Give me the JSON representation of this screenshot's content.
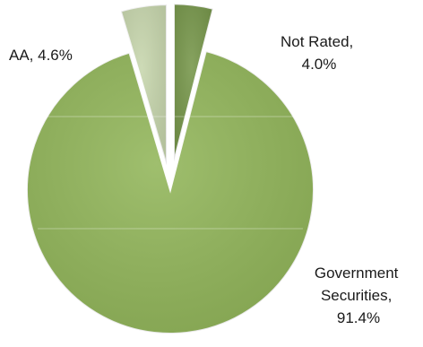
{
  "chart_data": {
    "type": "pie",
    "title": "",
    "series": [
      {
        "values": [
          91.4,
          4.6,
          4.0
        ],
        "categories": [
          "Government Securities",
          "AA",
          "Not Rated"
        ]
      }
    ],
    "colors": {
      "Government Securities": "#92b65a",
      "AA": "#c7d6ad",
      "Not Rated": "#76964a"
    },
    "labels": [
      {
        "category": "Government Securities",
        "lines": [
          "Government",
          "Securities,",
          "91.4%"
        ]
      },
      {
        "category": "AA",
        "lines": [
          "AA, 4.6%"
        ]
      },
      {
        "category": "Not Rated",
        "lines": [
          "Not Rated,",
          "4.0%"
        ]
      }
    ],
    "exploded": true,
    "legend": "none"
  }
}
